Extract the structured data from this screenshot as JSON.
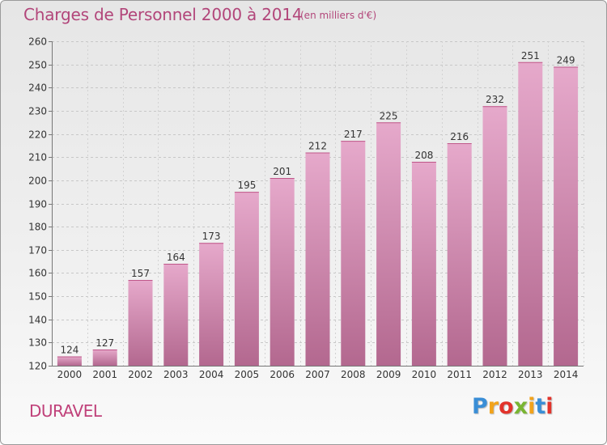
{
  "header": {
    "title": "Charges de Personnel 2000 à 2014",
    "subtitle": "(en milliers d'€)"
  },
  "footer": {
    "town": "DURAVEL",
    "logo_text": "Proxiti",
    "logo_colors": [
      "#3a8ed6",
      "#f2a31b",
      "#e2332b",
      "#79b532",
      "#f2a31b",
      "#3a8ed6",
      "#e2332b"
    ]
  },
  "colors": {
    "bar_top": "#e6a9cb",
    "bar_bottom": "#b3688f",
    "accent": "#b2467a"
  },
  "chart_data": {
    "type": "bar",
    "categories": [
      "2000",
      "2001",
      "2002",
      "2003",
      "2004",
      "2005",
      "2006",
      "2007",
      "2008",
      "2009",
      "2010",
      "2011",
      "2012",
      "2013",
      "2014"
    ],
    "values": [
      124,
      127,
      157,
      164,
      173,
      195,
      201,
      212,
      217,
      225,
      208,
      216,
      232,
      251,
      249
    ],
    "ylim": [
      120,
      260
    ],
    "yticks": [
      120,
      130,
      140,
      150,
      160,
      170,
      180,
      190,
      200,
      210,
      220,
      230,
      240,
      250,
      260
    ],
    "grid": true
  }
}
